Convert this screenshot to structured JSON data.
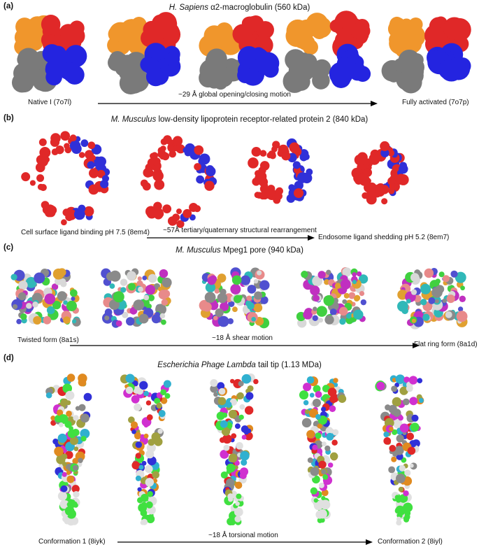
{
  "panels": [
    {
      "label": "(a)",
      "title_italic": "H. Sapiens",
      "title_rest": " α2-macroglobulin (560 kDa)",
      "start_caption": "Native I (7o7l)",
      "motion_caption": "~29 Å global opening/closing motion",
      "end_caption": "Fully activated (7o7p)",
      "colors": [
        "#f0962c",
        "#e02828",
        "#7a7a7a",
        "#2424e0"
      ]
    },
    {
      "label": "(b)",
      "title_italic": "M. Musculus",
      "title_rest": " low-density lipoprotein receptor-related protein 2 (840 kDa)",
      "start_caption": "Cell surface ligand binding pH 7.5 (8em4)",
      "motion_caption": "~57Å tertiary/quaternary structural rearrangement",
      "end_caption": "Endosome ligand shedding pH 5.2 (8em7)",
      "colors": [
        "#e02828",
        "#3030d8"
      ]
    },
    {
      "label": "(c)",
      "title_italic": "M. Musculus",
      "title_rest": " Mpeg1 pore (940 kDa)",
      "start_caption": "Twisted form (8a1s)",
      "motion_caption": "~18 Å shear motion",
      "end_caption": "Flat ring form (8a1d)",
      "colors": [
        "#e88a8a",
        "#30b8b8",
        "#40d040",
        "#d8d8d8",
        "#8a8a8a",
        "#c030c0",
        "#e0a030",
        "#5050d0"
      ]
    },
    {
      "label": "(d)",
      "title_italic": "Escherichia Phage Lambda",
      "title_rest": " tail tip (1.13 MDa)",
      "start_caption": "Conformation 1 (8iyk)",
      "motion_caption": "~18 Å torsional motion",
      "end_caption": "Conformation 2 (8iyl)",
      "colors": [
        "#40e040",
        "#e08a20",
        "#e02828",
        "#3030d8",
        "#d030d0",
        "#30b0d0",
        "#8a8a8a",
        "#e0e0e0",
        "#a0a040"
      ]
    }
  ]
}
